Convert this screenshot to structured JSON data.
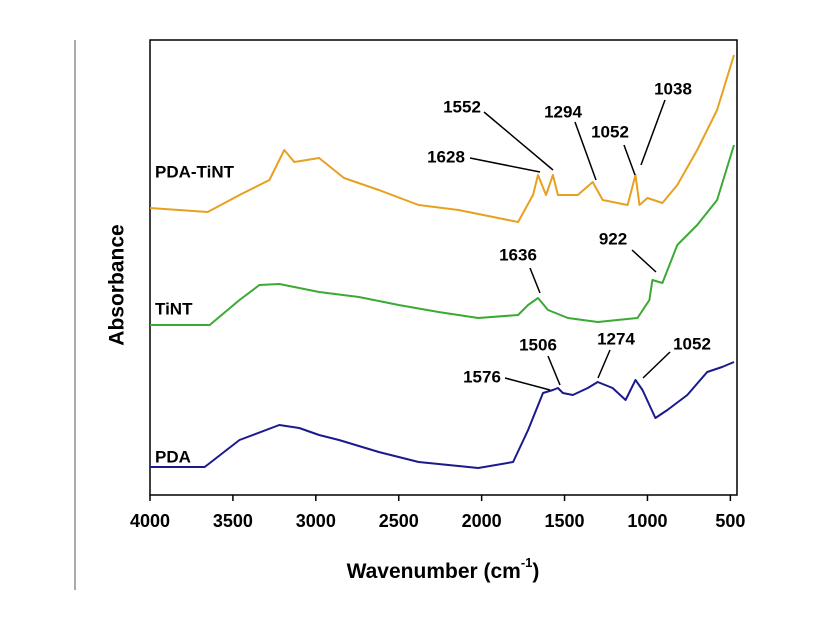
{
  "chart_data": {
    "type": "line",
    "xlabel": "Wavenumber (cm",
    "xlabel_sup": "-1",
    "xlabel_end": ")",
    "ylabel": "Absorbance",
    "xlim": [
      4000,
      460
    ],
    "xticks": [
      4000,
      3500,
      3000,
      2500,
      2000,
      1500,
      1000,
      500
    ],
    "ylim": [
      0,
      45.5
    ],
    "reversed_x": true,
    "grid": false,
    "series": [
      {
        "name": "PDA-TiNT",
        "color": "#e8a020",
        "x": [
          4000,
          3652,
          3460,
          3280,
          3190,
          3130,
          2980,
          2830,
          2620,
          2380,
          2140,
          1900,
          1780,
          1690,
          1660,
          1612,
          1570,
          1540,
          1420,
          1330,
          1270,
          1120,
          1072,
          1048,
          1000,
          910,
          820,
          700,
          580,
          478
        ],
        "values": [
          28.7,
          28.3,
          30.0,
          31.5,
          34.5,
          33.3,
          33.7,
          31.7,
          30.5,
          29.0,
          28.5,
          27.7,
          27.3,
          30.0,
          32.0,
          30.0,
          32.0,
          30.0,
          30.0,
          31.3,
          29.5,
          29.0,
          32.0,
          29.0,
          29.7,
          29.2,
          31.0,
          34.5,
          38.5,
          44.0
        ],
        "annotations": [
          "1628",
          "1552",
          "1294",
          "1052",
          "1038"
        ]
      },
      {
        "name": "TiNT",
        "color": "#3aaa35",
        "x": [
          4000,
          3640,
          3460,
          3340,
          3220,
          2980,
          2740,
          2500,
          2260,
          2020,
          1780,
          1720,
          1660,
          1600,
          1480,
          1300,
          1060,
          988,
          970,
          910,
          820,
          700,
          580,
          478
        ],
        "values": [
          17.0,
          17.0,
          19.5,
          21.0,
          21.1,
          20.3,
          19.8,
          19.0,
          18.3,
          17.7,
          18.0,
          19.0,
          19.7,
          18.5,
          17.7,
          17.3,
          17.7,
          19.5,
          21.5,
          21.2,
          25.0,
          27.0,
          29.5,
          35.0
        ],
        "annotations": [
          "1636",
          "922"
        ]
      },
      {
        "name": "PDA",
        "color": "#1a1a8c",
        "x": [
          4000,
          3670,
          3460,
          3220,
          3100,
          2980,
          2860,
          2620,
          2380,
          2020,
          1810,
          1720,
          1630,
          1570,
          1540,
          1510,
          1450,
          1360,
          1300,
          1210,
          1132,
          1072,
          1030,
          952,
          880,
          760,
          640,
          550,
          478
        ],
        "values": [
          2.8,
          2.8,
          5.5,
          7.0,
          6.7,
          6.0,
          5.5,
          4.3,
          3.3,
          2.7,
          3.3,
          6.5,
          10.2,
          10.5,
          10.7,
          10.2,
          10.0,
          10.7,
          11.3,
          10.7,
          9.5,
          11.5,
          10.5,
          7.7,
          8.5,
          10.0,
          12.3,
          12.8,
          13.3
        ],
        "annotations": [
          "1576",
          "1506",
          "1274",
          "1052"
        ]
      }
    ]
  }
}
